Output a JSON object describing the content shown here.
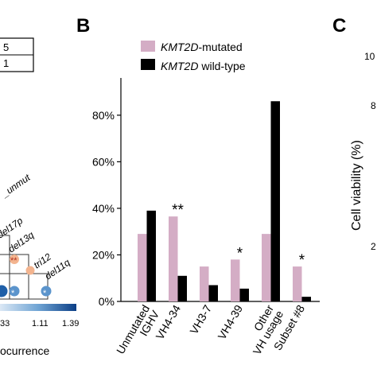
{
  "panels": {
    "a_fragment": {
      "box_values": [
        "5",
        "1"
      ],
      "diag_labels": [
        "_unmut",
        "del17p",
        "del13q",
        "tri12",
        "del11q"
      ],
      "colorbar_ticks": [
        "33",
        "1.11",
        "1.39"
      ],
      "colorbar_label": "ocurrence",
      "colors": {
        "dark_blue": "#1f5fa8",
        "mid_blue": "#5b94cc",
        "peach": "#f3b48f",
        "star": "#b03020"
      }
    },
    "b": {
      "letter": "B",
      "legend": [
        {
          "italic": "KMT2D",
          "rest": "-mutated",
          "color": "#d4adc5"
        },
        {
          "italic": "KMT2D",
          "rest": " wild-type",
          "color": "#000000"
        }
      ]
    },
    "c": {
      "letter": "C",
      "ylabel": "Cell viability (%)",
      "tick_fragments": [
        "10",
        "8",
        "2"
      ]
    }
  },
  "chart_data": {
    "type": "bar",
    "categories": [
      [
        "Unmutated",
        "IGHV"
      ],
      [
        "VH4-34"
      ],
      [
        "VH3-7"
      ],
      [
        "VH4-39"
      ],
      [
        "Other",
        "VH usage"
      ],
      [
        "Subset #8"
      ]
    ],
    "series": [
      {
        "name": "KMT2D-mutated",
        "color": "#d4adc5",
        "values": [
          29,
          36.5,
          15,
          18,
          29,
          15
        ]
      },
      {
        "name": "KMT2D wild-type",
        "color": "#000000",
        "values": [
          39,
          11,
          7,
          5.5,
          86,
          2
        ]
      }
    ],
    "annotations": [
      "",
      "**",
      "",
      "*",
      "",
      "*"
    ],
    "ylim": [
      0,
      96
    ],
    "yticks": [
      0,
      20,
      40,
      60,
      80
    ],
    "ytick_labels": [
      "0%",
      "20%",
      "40%",
      "60%",
      "80%"
    ],
    "grid": false
  }
}
